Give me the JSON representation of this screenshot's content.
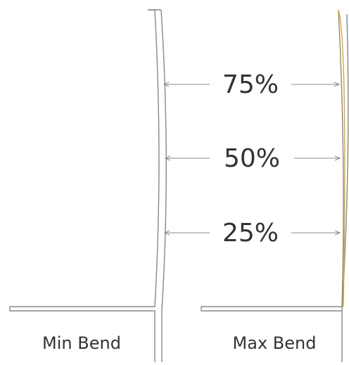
{
  "diagram": {
    "levels": [
      "75%",
      "50%",
      "25%"
    ],
    "captions": {
      "min": "Min Bend",
      "max": "Max Bend"
    },
    "colors": {
      "outline": "#888888",
      "arrow": "#888888",
      "bend_highlight": "#f0a020",
      "text": "#333333"
    }
  }
}
